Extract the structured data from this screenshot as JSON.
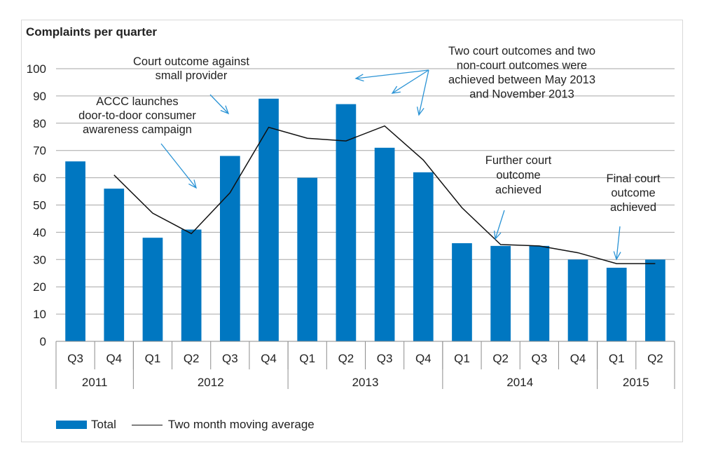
{
  "chart_data": {
    "type": "bar",
    "title": "Complaints per quarter",
    "categories": [
      "Q3",
      "Q4",
      "Q1",
      "Q2",
      "Q3",
      "Q4",
      "Q1",
      "Q2",
      "Q3",
      "Q4",
      "Q1",
      "Q2",
      "Q3",
      "Q4",
      "Q1",
      "Q2"
    ],
    "years": [
      {
        "label": "2011",
        "span": 2
      },
      {
        "label": "2012",
        "span": 4
      },
      {
        "label": "2013",
        "span": 4
      },
      {
        "label": "2014",
        "span": 4
      },
      {
        "label": "2015",
        "span": 2
      }
    ],
    "series": [
      {
        "name": "Total",
        "type": "bar",
        "color": "#0077c1",
        "values": [
          66,
          56,
          38,
          41,
          68,
          89,
          60,
          87,
          71,
          62,
          36,
          35,
          35,
          30,
          27,
          30
        ]
      },
      {
        "name": "Two month moving average",
        "type": "line",
        "color": "#111111",
        "values": [
          null,
          61,
          47,
          39.5,
          54.5,
          78.5,
          74.5,
          73.5,
          79,
          66.5,
          49,
          35.5,
          35,
          32.5,
          28.5,
          28.5
        ]
      }
    ],
    "ylim": [
      0,
      100
    ],
    "yticks": [
      0,
      10,
      20,
      30,
      40,
      50,
      60,
      70,
      80,
      90,
      100
    ],
    "grid": true,
    "legend_position": "bottom-left",
    "annotations": [
      {
        "text": "ACCC launches door-to-door consumer awareness campaign",
        "lines": [
          "ACCC launches",
          "door-to-door consumer",
          "awareness campaign"
        ]
      },
      {
        "text": "Court outcome against small provider",
        "lines": [
          "Court outcome against",
          "small provider"
        ]
      },
      {
        "text": "Two court outcomes and two non-court outcomes were achieved between May 2013 and November 2013",
        "lines": [
          "Two court outcomes and two",
          "non-court outcomes were",
          "achieved between May 2013",
          "and November 2013"
        ]
      },
      {
        "text": "Further court outcome achieved",
        "lines": [
          "Further court",
          "outcome",
          "achieved"
        ]
      },
      {
        "text": "Final court outcome achieved",
        "lines": [
          "Final court",
          "outcome",
          "achieved"
        ]
      }
    ],
    "annotation_color": "#2a93d5"
  }
}
